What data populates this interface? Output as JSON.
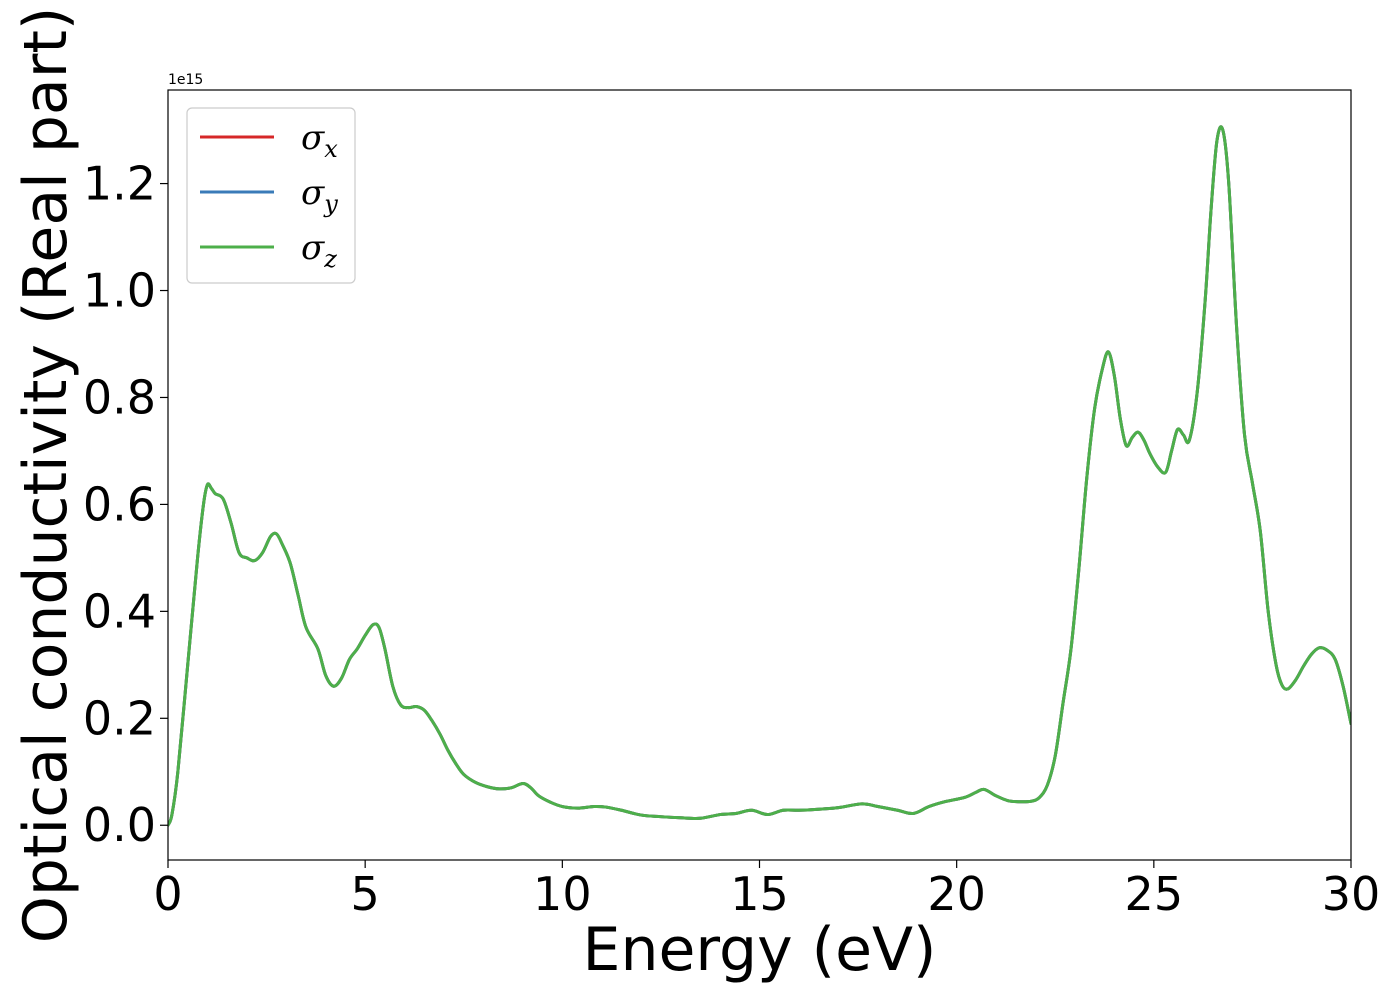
{
  "chart_data": {
    "type": "line",
    "title": "",
    "xlabel": "Energy (eV)",
    "ylabel": "Optical conductivity (Real part)",
    "xlim": [
      0,
      30
    ],
    "ylim": [
      -0.065,
      1.375
    ],
    "y_scale_multiplier_text": "1e15",
    "x_ticks": [
      0,
      5,
      10,
      15,
      20,
      25,
      30
    ],
    "x_tick_labels": [
      "0",
      "5",
      "10",
      "15",
      "20",
      "25",
      "30"
    ],
    "y_ticks": [
      0.0,
      0.2,
      0.4,
      0.6,
      0.8,
      1.0,
      1.2
    ],
    "y_tick_labels": [
      "0.0",
      "0.2",
      "0.4",
      "0.6",
      "0.8",
      "1.0",
      "1.2"
    ],
    "grid": false,
    "legend_position": "top-left",
    "series": [
      {
        "name": "σx",
        "symbol": "σ",
        "subscript": "x",
        "color": "#d62728",
        "x": [
          0,
          0.1,
          0.25,
          0.5,
          0.75,
          0.9,
          1.0,
          1.1,
          1.2,
          1.4,
          1.6,
          1.8,
          2.0,
          2.2,
          2.4,
          2.6,
          2.75,
          2.9,
          3.1,
          3.3,
          3.5,
          3.8,
          4.0,
          4.2,
          4.4,
          4.6,
          4.8,
          5.0,
          5.2,
          5.35,
          5.5,
          5.7,
          5.9,
          6.1,
          6.3,
          6.5,
          6.7,
          6.9,
          7.1,
          7.3,
          7.5,
          7.8,
          8.1,
          8.4,
          8.7,
          9.0,
          9.2,
          9.4,
          9.7,
          10.0,
          10.4,
          10.8,
          11.1,
          11.5,
          12.0,
          12.5,
          13.0,
          13.5,
          14.0,
          14.4,
          14.8,
          15.2,
          15.6,
          16.0,
          16.5,
          17.0,
          17.6,
          18.0,
          18.5,
          18.9,
          19.3,
          19.7,
          20.2,
          20.5,
          20.7,
          21.0,
          21.3,
          21.6,
          21.9,
          22.1,
          22.3,
          22.5,
          22.7,
          22.9,
          23.1,
          23.3,
          23.5,
          23.7,
          23.85,
          24.0,
          24.15,
          24.3,
          24.45,
          24.6,
          24.75,
          24.9,
          25.1,
          25.3,
          25.45,
          25.6,
          25.75,
          25.9,
          26.1,
          26.3,
          26.45,
          26.6,
          26.75,
          26.9,
          27.1,
          27.3,
          27.5,
          27.7,
          27.9,
          28.1,
          28.25,
          28.4,
          28.6,
          28.8,
          29.0,
          29.2,
          29.4,
          29.6,
          29.8,
          30.0
        ],
        "y": [
          0.0,
          0.02,
          0.1,
          0.3,
          0.5,
          0.6,
          0.637,
          0.63,
          0.62,
          0.61,
          0.565,
          0.51,
          0.5,
          0.495,
          0.51,
          0.54,
          0.545,
          0.525,
          0.49,
          0.43,
          0.37,
          0.33,
          0.28,
          0.26,
          0.275,
          0.31,
          0.33,
          0.355,
          0.375,
          0.37,
          0.33,
          0.26,
          0.225,
          0.22,
          0.222,
          0.215,
          0.195,
          0.17,
          0.14,
          0.115,
          0.095,
          0.08,
          0.072,
          0.068,
          0.07,
          0.078,
          0.07,
          0.055,
          0.043,
          0.035,
          0.032,
          0.035,
          0.034,
          0.028,
          0.019,
          0.016,
          0.014,
          0.013,
          0.02,
          0.022,
          0.028,
          0.02,
          0.028,
          0.028,
          0.03,
          0.033,
          0.04,
          0.035,
          0.028,
          0.022,
          0.035,
          0.044,
          0.052,
          0.062,
          0.067,
          0.055,
          0.046,
          0.044,
          0.045,
          0.052,
          0.075,
          0.13,
          0.23,
          0.33,
          0.48,
          0.65,
          0.78,
          0.855,
          0.885,
          0.84,
          0.76,
          0.71,
          0.725,
          0.735,
          0.72,
          0.695,
          0.67,
          0.66,
          0.7,
          0.74,
          0.73,
          0.72,
          0.81,
          0.98,
          1.15,
          1.28,
          1.3,
          1.2,
          0.93,
          0.73,
          0.64,
          0.55,
          0.4,
          0.3,
          0.262,
          0.255,
          0.272,
          0.298,
          0.32,
          0.332,
          0.327,
          0.31,
          0.26,
          0.19
        ]
      },
      {
        "name": "σy",
        "symbol": "σ",
        "subscript": "y",
        "color": "#3a7bb8",
        "same_as": "σx"
      },
      {
        "name": "σz",
        "symbol": "σ",
        "subscript": "z",
        "color": "#4daf4a",
        "same_as": "σx"
      }
    ]
  }
}
